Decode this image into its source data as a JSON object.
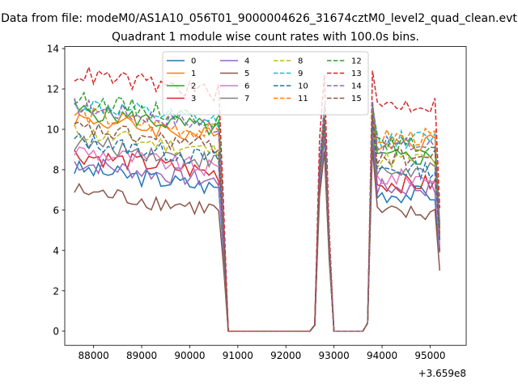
{
  "suptitle": "Data from file: modeM0/AS1A10_056T01_9000004626_31674cztM0_level2_quad_clean.evt",
  "chart_data": {
    "type": "line",
    "title": "Quadrant 1 module wise count rates with 100.0s bins.",
    "xlabel": "",
    "ylabel": "",
    "x_offset_label": "+3.659e8",
    "xlim": [
      87400,
      95750
    ],
    "ylim": [
      -0.7,
      14.1
    ],
    "xticks": [
      88000,
      89000,
      90000,
      91000,
      92000,
      93000,
      94000,
      95000
    ],
    "xtick_labels": [
      "88000",
      "89000",
      "90000",
      "91000",
      "92000",
      "93000",
      "94000",
      "95000"
    ],
    "yticks": [
      0,
      2,
      4,
      6,
      8,
      10,
      12,
      14
    ],
    "ytick_labels": [
      "0",
      "2",
      "4",
      "6",
      "8",
      "10",
      "12",
      "14"
    ],
    "grid": false,
    "legend": {
      "placement": "upper-center",
      "ncol": 4
    },
    "series": [
      {
        "name": "0",
        "color": "#1f77b4",
        "dash": "solid",
        "base": 7.1,
        "peak2": 9.6,
        "base2": 6.8,
        "end": 3.9
      },
      {
        "name": "1",
        "color": "#ff7f0e",
        "dash": "solid",
        "base": 9.6,
        "peak2": 10.6,
        "base2": 9.4,
        "end": 5.2
      },
      {
        "name": "2",
        "color": "#2ca02c",
        "dash": "solid",
        "base": 10.0,
        "peak2": 10.9,
        "base2": 8.6,
        "end": 4.8
      },
      {
        "name": "3",
        "color": "#d62728",
        "dash": "solid",
        "base": 7.8,
        "peak2": 10.0,
        "base2": 7.3,
        "end": 4.0
      },
      {
        "name": "4",
        "color": "#9467bd",
        "dash": "solid",
        "base": 7.4,
        "peak2": 9.8,
        "base2": 7.1,
        "end": 4.1
      },
      {
        "name": "5",
        "color": "#8c564b",
        "dash": "solid",
        "base": 6.0,
        "peak2": 8.9,
        "base2": 5.8,
        "end": 3.0
      },
      {
        "name": "6",
        "color": "#e377c2",
        "dash": "solid",
        "base": 8.0,
        "peak2": 10.2,
        "base2": 7.6,
        "end": 4.3
      },
      {
        "name": "7",
        "color": "#7f7f7f",
        "dash": "solid",
        "base": 8.4,
        "peak2": 10.1,
        "base2": 7.9,
        "end": 4.5
      },
      {
        "name": "8",
        "color": "#bcbd22",
        "dash": "dashed",
        "base": 8.9,
        "peak2": 10.4,
        "base2": 8.5,
        "end": 4.7
      },
      {
        "name": "9",
        "color": "#17becf",
        "dash": "dashed",
        "base": 10.3,
        "peak2": 10.8,
        "base2": 9.5,
        "end": 5.4
      },
      {
        "name": "10",
        "color": "#1f77b4",
        "dash": "dashed",
        "base": 8.5,
        "peak2": 10.3,
        "base2": 8.0,
        "end": 4.5
      },
      {
        "name": "11",
        "color": "#ff7f0e",
        "dash": "dashed",
        "base": 9.8,
        "peak2": 10.7,
        "base2": 9.6,
        "end": 5.0
      },
      {
        "name": "12",
        "color": "#2ca02c",
        "dash": "dashed",
        "base": 10.5,
        "peak2": 11.0,
        "base2": 9.2,
        "end": 5.1
      },
      {
        "name": "13",
        "color": "#d62728",
        "dash": "dashed",
        "base": 11.8,
        "peak2": 12.7,
        "base2": 11.2,
        "end": 6.1
      },
      {
        "name": "14",
        "color": "#9467bd",
        "dash": "dashed",
        "base": 10.2,
        "peak2": 11.2,
        "base2": 9.2,
        "end": 5.3
      },
      {
        "name": "15",
        "color": "#8c564b",
        "dash": "dashed",
        "base": 9.1,
        "peak2": 10.5,
        "base2": 8.6,
        "end": 4.6
      }
    ]
  }
}
